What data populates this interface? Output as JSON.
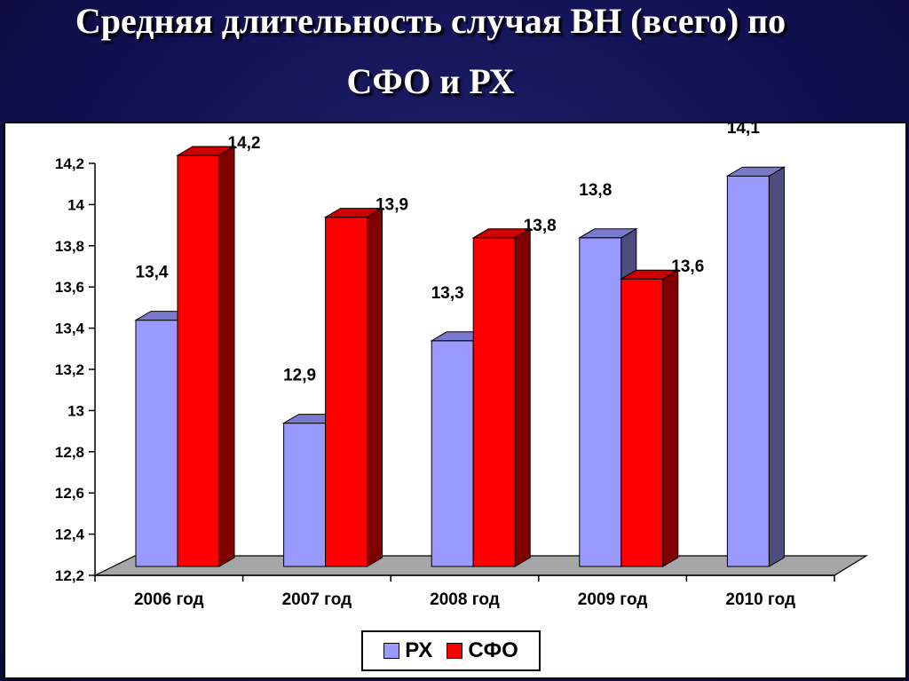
{
  "title": {
    "line1": "Средняя длительность случая ВН (всего) по",
    "line2": "СФО и РХ"
  },
  "colors": {
    "rx": "#9999ff",
    "sfo": "#ff0000"
  },
  "chart_data": {
    "type": "bar",
    "title": "Средняя длительность случая ВН (всего) по СФО и РХ",
    "categories": [
      "2006 год",
      "2007 год",
      "2008 год",
      "2009 год",
      "2010 год"
    ],
    "series": [
      {
        "name": "РХ",
        "values": [
          13.4,
          12.9,
          13.3,
          13.8,
          14.1
        ]
      },
      {
        "name": "СФО",
        "values": [
          14.2,
          13.9,
          13.8,
          13.6,
          null
        ]
      }
    ],
    "data_labels": {
      "РХ": [
        "13,4",
        "12,9",
        "13,3",
        "13,8",
        "14,1"
      ],
      "СФО": [
        "14,2",
        "13,9",
        "13,8",
        "13,6",
        ""
      ]
    },
    "y_ticks": [
      "12,2",
      "12,4",
      "12,6",
      "12,8",
      "13",
      "13,2",
      "13,4",
      "13,6",
      "13,8",
      "14",
      "14,2"
    ],
    "ylim": [
      12.2,
      14.2
    ],
    "xlabel": "",
    "ylabel": "",
    "grid": false,
    "legend_position": "bottom-center",
    "style": "3d-bar"
  }
}
